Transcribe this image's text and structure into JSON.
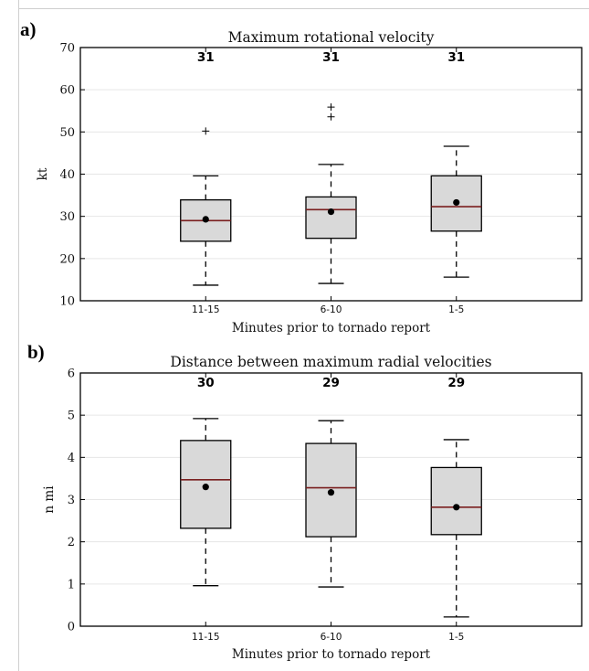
{
  "chart_data": [
    {
      "type": "box",
      "panel_label": "a)",
      "title": "Maximum rotational velocity",
      "xlabel": "Minutes prior to tornado report",
      "ylabel": "kt",
      "ylim": [
        10,
        70
      ],
      "yticks": [
        10,
        20,
        30,
        40,
        50,
        60,
        70
      ],
      "grid": true,
      "categories": [
        "11-15",
        "6-10",
        "1-5"
      ],
      "counts": [
        "31",
        "31",
        "31"
      ],
      "boxes": [
        {
          "whisker_low": 13.7,
          "q1": 24.1,
          "median": 29.0,
          "q3": 33.9,
          "whisker_high": 39.6,
          "mean": 29.3,
          "outliers": [
            50.2
          ]
        },
        {
          "whisker_low": 14.1,
          "q1": 24.8,
          "median": 31.6,
          "q3": 34.6,
          "whisker_high": 42.3,
          "mean": 31.1,
          "outliers": [
            53.6,
            55.9
          ]
        },
        {
          "whisker_low": 15.6,
          "q1": 26.5,
          "median": 32.3,
          "q3": 39.6,
          "whisker_high": 46.6,
          "mean": 33.3,
          "outliers": []
        }
      ]
    },
    {
      "type": "box",
      "panel_label": "b)",
      "title": "Distance between maximum radial velocities",
      "xlabel": "Minutes prior to tornado report",
      "ylabel": "n mi",
      "ylim": [
        0,
        6
      ],
      "yticks": [
        0,
        1,
        2,
        3,
        4,
        5,
        6
      ],
      "grid": true,
      "categories": [
        "11-15",
        "6-10",
        "1-5"
      ],
      "counts": [
        "30",
        "29",
        "29"
      ],
      "boxes": [
        {
          "whisker_low": 0.96,
          "q1": 2.32,
          "median": 3.47,
          "q3": 4.4,
          "whisker_high": 4.92,
          "mean": 3.3,
          "outliers": []
        },
        {
          "whisker_low": 0.93,
          "q1": 2.12,
          "median": 3.28,
          "q3": 4.33,
          "whisker_high": 4.87,
          "mean": 3.17,
          "outliers": []
        },
        {
          "whisker_low": 0.22,
          "q1": 2.17,
          "median": 2.82,
          "q3": 3.76,
          "whisker_high": 4.42,
          "mean": 2.82,
          "outliers": []
        }
      ]
    }
  ],
  "colors": {
    "box_fill": "#d9d9d9",
    "median": "#7a1f1f",
    "mean_marker": "#000000",
    "grid": "#e6e6e6"
  }
}
